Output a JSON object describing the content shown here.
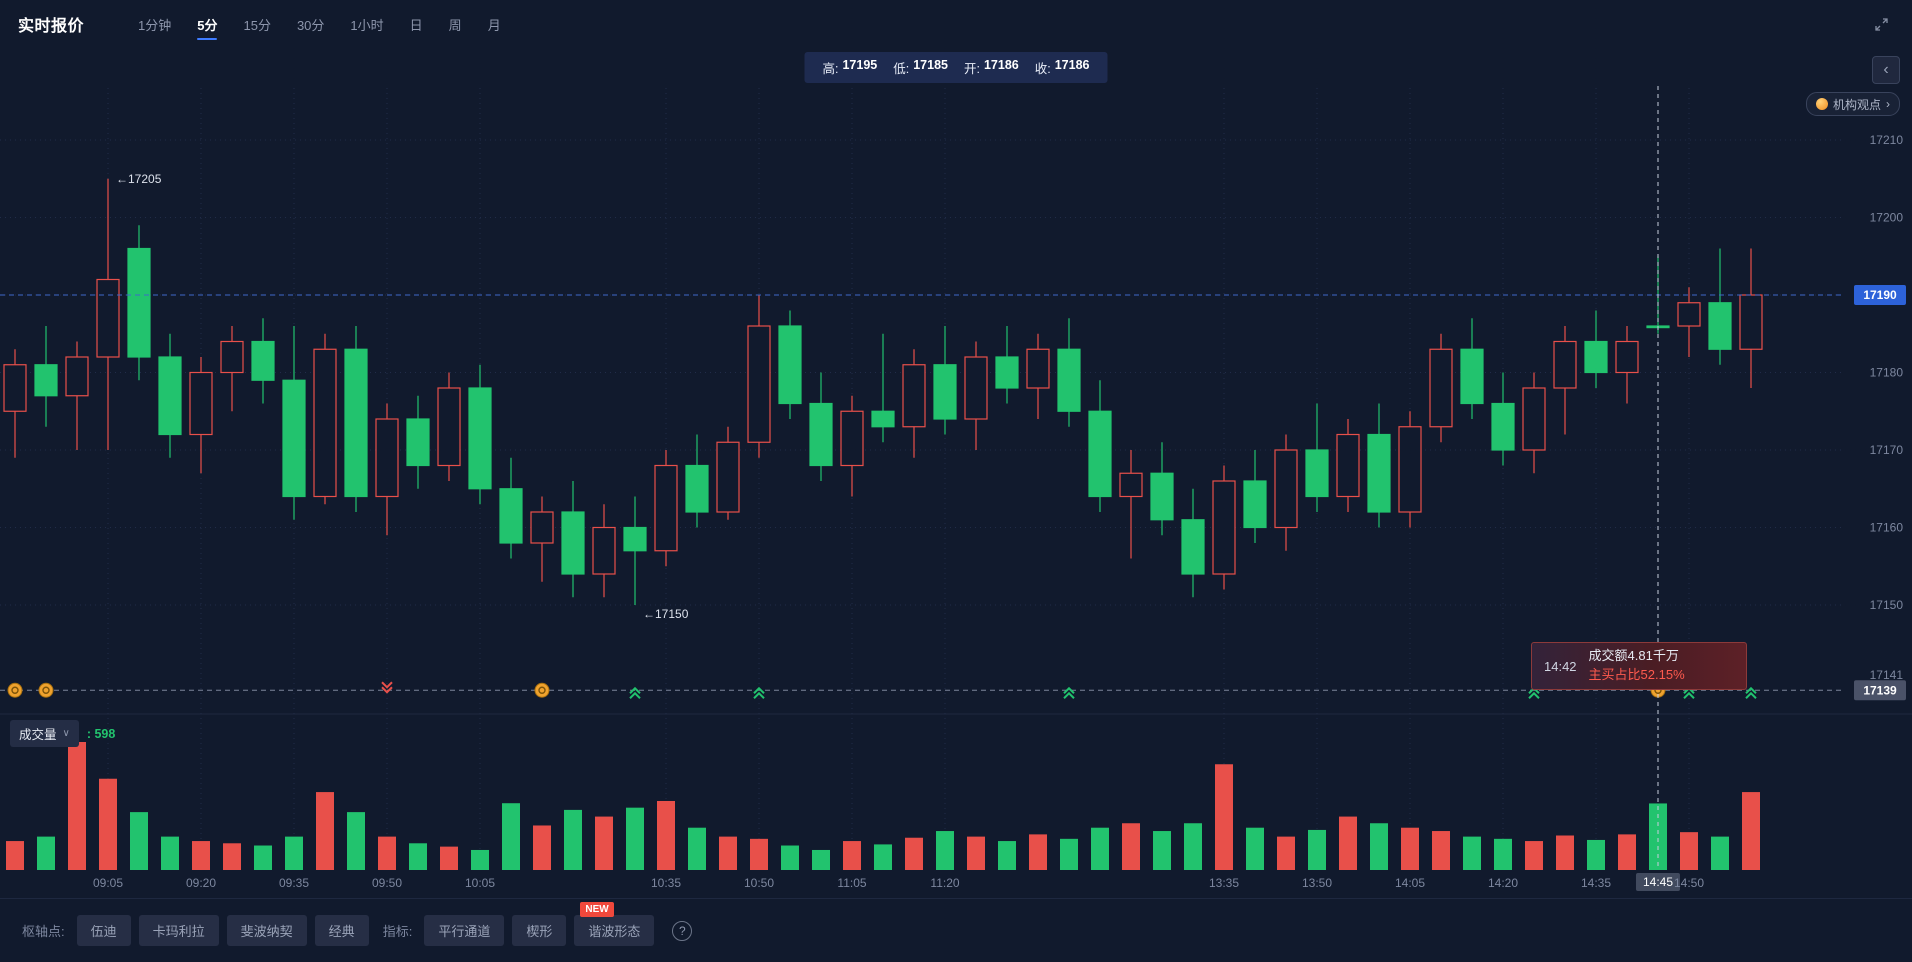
{
  "colors": {
    "up": "#e8504a",
    "down": "#22c36e",
    "accent": "#2d62d9",
    "bg": "#111a2d"
  },
  "header": {
    "title": "实时报价",
    "timeframes": [
      {
        "label": "1分钟",
        "active": false
      },
      {
        "label": "5分",
        "active": true
      },
      {
        "label": "15分",
        "active": false
      },
      {
        "label": "30分",
        "active": false
      },
      {
        "label": "1小时",
        "active": false
      },
      {
        "label": "日",
        "active": false
      },
      {
        "label": "周",
        "active": false
      },
      {
        "label": "月",
        "active": false
      }
    ],
    "icons": {
      "fullscreen": "expand-arrows-icon"
    }
  },
  "ohlc_bar": {
    "items": [
      {
        "label": "高:",
        "value": "17195"
      },
      {
        "label": "低:",
        "value": "17185"
      },
      {
        "label": "开:",
        "value": "17186"
      },
      {
        "label": "收:",
        "value": "17186"
      }
    ]
  },
  "side_panel": {
    "collapse_chevron": "‹",
    "insight_label": "机构观点",
    "insight_chevron": "›",
    "icons": {
      "insight": "orange-coin-icon"
    }
  },
  "chart": {
    "y_ticks": [
      {
        "label": "17210",
        "grid": true
      },
      {
        "label": "17200",
        "grid": true
      },
      {
        "label": "17190",
        "grid": true
      },
      {
        "label": "17180",
        "grid": true
      },
      {
        "label": "17170",
        "grid": true
      },
      {
        "label": "17160",
        "grid": true
      },
      {
        "label": "17150",
        "grid": true
      },
      {
        "label": "17141",
        "grid": false
      }
    ],
    "price_line": {
      "value": 17190,
      "label": "17190"
    },
    "signal_line": {
      "price": 17139,
      "label": "17139"
    },
    "annotations": [
      {
        "text": "←17205",
        "index": 3,
        "price": 17205,
        "dy": 4
      },
      {
        "text": "←17150",
        "index": 20,
        "price": 17150,
        "dy": 13
      }
    ],
    "crosshair": {
      "index": 53,
      "time": "14:45"
    },
    "tooltip": {
      "time": "14:42",
      "line1": "成交额4.81千万",
      "line2": "主买占比52.15%"
    }
  },
  "volume_pane": {
    "label": "成交量",
    "caret": "∨",
    "value": ": 598"
  },
  "toolbar": {
    "groups": [
      {
        "label": "枢轴点:",
        "buttons": [
          {
            "label": "伍迪"
          },
          {
            "label": "卡玛利拉"
          },
          {
            "label": "斐波纳契"
          },
          {
            "label": "经典"
          }
        ]
      },
      {
        "label": "指标:",
        "buttons": [
          {
            "label": "平行通道"
          },
          {
            "label": "楔形"
          },
          {
            "label": "谐波形态",
            "badge": "NEW"
          }
        ]
      }
    ],
    "help_icon": "?"
  },
  "chart_data": {
    "type": "candlestick+volume",
    "bar_format": [
      "time",
      "open",
      "high",
      "low",
      "close",
      "volume"
    ],
    "ylim": [
      17139,
      17210
    ],
    "session_break": "11:30 → 13:05",
    "bars": [
      [
        "08:50",
        17175,
        17183,
        17169,
        17181,
        260
      ],
      [
        "08:55",
        17181,
        17186,
        17173,
        17177,
        300
      ],
      [
        "09:00",
        17177,
        17184,
        17170,
        17182,
        1150
      ],
      [
        "09:05",
        17182,
        17205,
        17170,
        17192,
        820
      ],
      [
        "09:10",
        17196,
        17199,
        17179,
        17182,
        520
      ],
      [
        "09:15",
        17182,
        17185,
        17169,
        17172,
        300
      ],
      [
        "09:20",
        17172,
        17182,
        17167,
        17180,
        260
      ],
      [
        "09:25",
        17180,
        17186,
        17175,
        17184,
        240
      ],
      [
        "09:30",
        17184,
        17187,
        17176,
        17179,
        220
      ],
      [
        "09:35",
        17179,
        17186,
        17161,
        17164,
        300
      ],
      [
        "09:40",
        17164,
        17185,
        17163,
        17183,
        700
      ],
      [
        "09:45",
        17183,
        17186,
        17162,
        17164,
        520
      ],
      [
        "09:50",
        17164,
        17176,
        17159,
        17174,
        300
      ],
      [
        "09:55",
        17174,
        17177,
        17165,
        17168,
        240
      ],
      [
        "10:00",
        17168,
        17180,
        17166,
        17178,
        210
      ],
      [
        "10:05",
        17178,
        17181,
        17163,
        17165,
        180
      ],
      [
        "10:10",
        17165,
        17169,
        17156,
        17158,
        600
      ],
      [
        "10:15",
        17158,
        17164,
        17153,
        17162,
        400
      ],
      [
        "10:20",
        17162,
        17166,
        17151,
        17154,
        540
      ],
      [
        "10:25",
        17154,
        17163,
        17151,
        17160,
        480
      ],
      [
        "10:30",
        17160,
        17164,
        17150,
        17157,
        560
      ],
      [
        "10:35",
        17157,
        17170,
        17155,
        17168,
        620
      ],
      [
        "10:40",
        17168,
        17172,
        17160,
        17162,
        380
      ],
      [
        "10:45",
        17162,
        17173,
        17161,
        17171,
        300
      ],
      [
        "10:50",
        17171,
        17190,
        17169,
        17186,
        280
      ],
      [
        "10:55",
        17186,
        17188,
        17174,
        17176,
        220
      ],
      [
        "11:00",
        17176,
        17180,
        17166,
        17168,
        180
      ],
      [
        "11:05",
        17168,
        17177,
        17164,
        17175,
        260
      ],
      [
        "11:10",
        17175,
        17185,
        17171,
        17173,
        230
      ],
      [
        "11:15",
        17173,
        17183,
        17169,
        17181,
        290
      ],
      [
        "11:20",
        17181,
        17186,
        17172,
        17174,
        350
      ],
      [
        "11:25",
        17174,
        17184,
        17170,
        17182,
        300
      ],
      [
        "11:30",
        17182,
        17186,
        17176,
        17178,
        260
      ],
      [
        "13:05",
        17178,
        17185,
        17174,
        17183,
        320
      ],
      [
        "13:10",
        17183,
        17187,
        17173,
        17175,
        280
      ],
      [
        "13:15",
        17175,
        17179,
        17162,
        17164,
        380
      ],
      [
        "13:20",
        17164,
        17170,
        17156,
        17167,
        420
      ],
      [
        "13:25",
        17167,
        17171,
        17159,
        17161,
        350
      ],
      [
        "13:30",
        17161,
        17165,
        17151,
        17154,
        420
      ],
      [
        "13:35",
        17154,
        17168,
        17152,
        17166,
        950
      ],
      [
        "13:40",
        17166,
        17170,
        17158,
        17160,
        380
      ],
      [
        "13:45",
        17160,
        17172,
        17157,
        17170,
        300
      ],
      [
        "13:50",
        17170,
        17176,
        17162,
        17164,
        360
      ],
      [
        "13:55",
        17164,
        17174,
        17162,
        17172,
        480
      ],
      [
        "14:00",
        17172,
        17176,
        17160,
        17162,
        420
      ],
      [
        "14:05",
        17162,
        17175,
        17160,
        17173,
        380
      ],
      [
        "14:10",
        17173,
        17185,
        17171,
        17183,
        350
      ],
      [
        "14:15",
        17183,
        17187,
        17174,
        17176,
        300
      ],
      [
        "14:20",
        17176,
        17180,
        17168,
        17170,
        280
      ],
      [
        "14:25",
        17170,
        17180,
        17167,
        17178,
        260
      ],
      [
        "14:30",
        17178,
        17186,
        17172,
        17184,
        310
      ],
      [
        "14:35",
        17184,
        17188,
        17178,
        17180,
        270
      ],
      [
        "14:40",
        17180,
        17186,
        17176,
        17184,
        320
      ],
      [
        "14:45",
        17186,
        17195,
        17185,
        17186,
        598
      ],
      [
        "14:50",
        17186,
        17191,
        17182,
        17189,
        340
      ],
      [
        "14:55",
        17189,
        17196,
        17181,
        17183,
        300
      ],
      [
        "15:00",
        17183,
        17196,
        17178,
        17190,
        700
      ]
    ],
    "time_ticks": [
      {
        "label": "09:05",
        "index": 3
      },
      {
        "label": "09:20",
        "index": 6
      },
      {
        "label": "09:35",
        "index": 9
      },
      {
        "label": "09:50",
        "index": 12
      },
      {
        "label": "10:05",
        "index": 15
      },
      {
        "label": "10:35",
        "index": 21
      },
      {
        "label": "10:50",
        "index": 24
      },
      {
        "label": "11:05",
        "index": 27
      },
      {
        "label": "11:20",
        "index": 30
      },
      {
        "label": "13:35",
        "index": 39
      },
      {
        "label": "13:50",
        "index": 42
      },
      {
        "label": "14:05",
        "index": 45
      },
      {
        "label": "14:20",
        "index": 48
      },
      {
        "label": "14:35",
        "index": 51
      },
      {
        "label": "14:45",
        "index": 53,
        "highlight": true
      },
      {
        "label": "14:50",
        "index": 54
      }
    ],
    "markers": [
      {
        "index": 0,
        "type": "coin"
      },
      {
        "index": 1,
        "type": "coin"
      },
      {
        "index": 12,
        "type": "down"
      },
      {
        "index": 17,
        "type": "coin"
      },
      {
        "index": 20,
        "type": "up"
      },
      {
        "index": 24,
        "type": "up"
      },
      {
        "index": 34,
        "type": "up"
      },
      {
        "index": 49,
        "type": "up"
      },
      {
        "index": 53,
        "type": "coin"
      },
      {
        "index": 54,
        "type": "up"
      },
      {
        "index": 56,
        "type": "up"
      }
    ]
  }
}
